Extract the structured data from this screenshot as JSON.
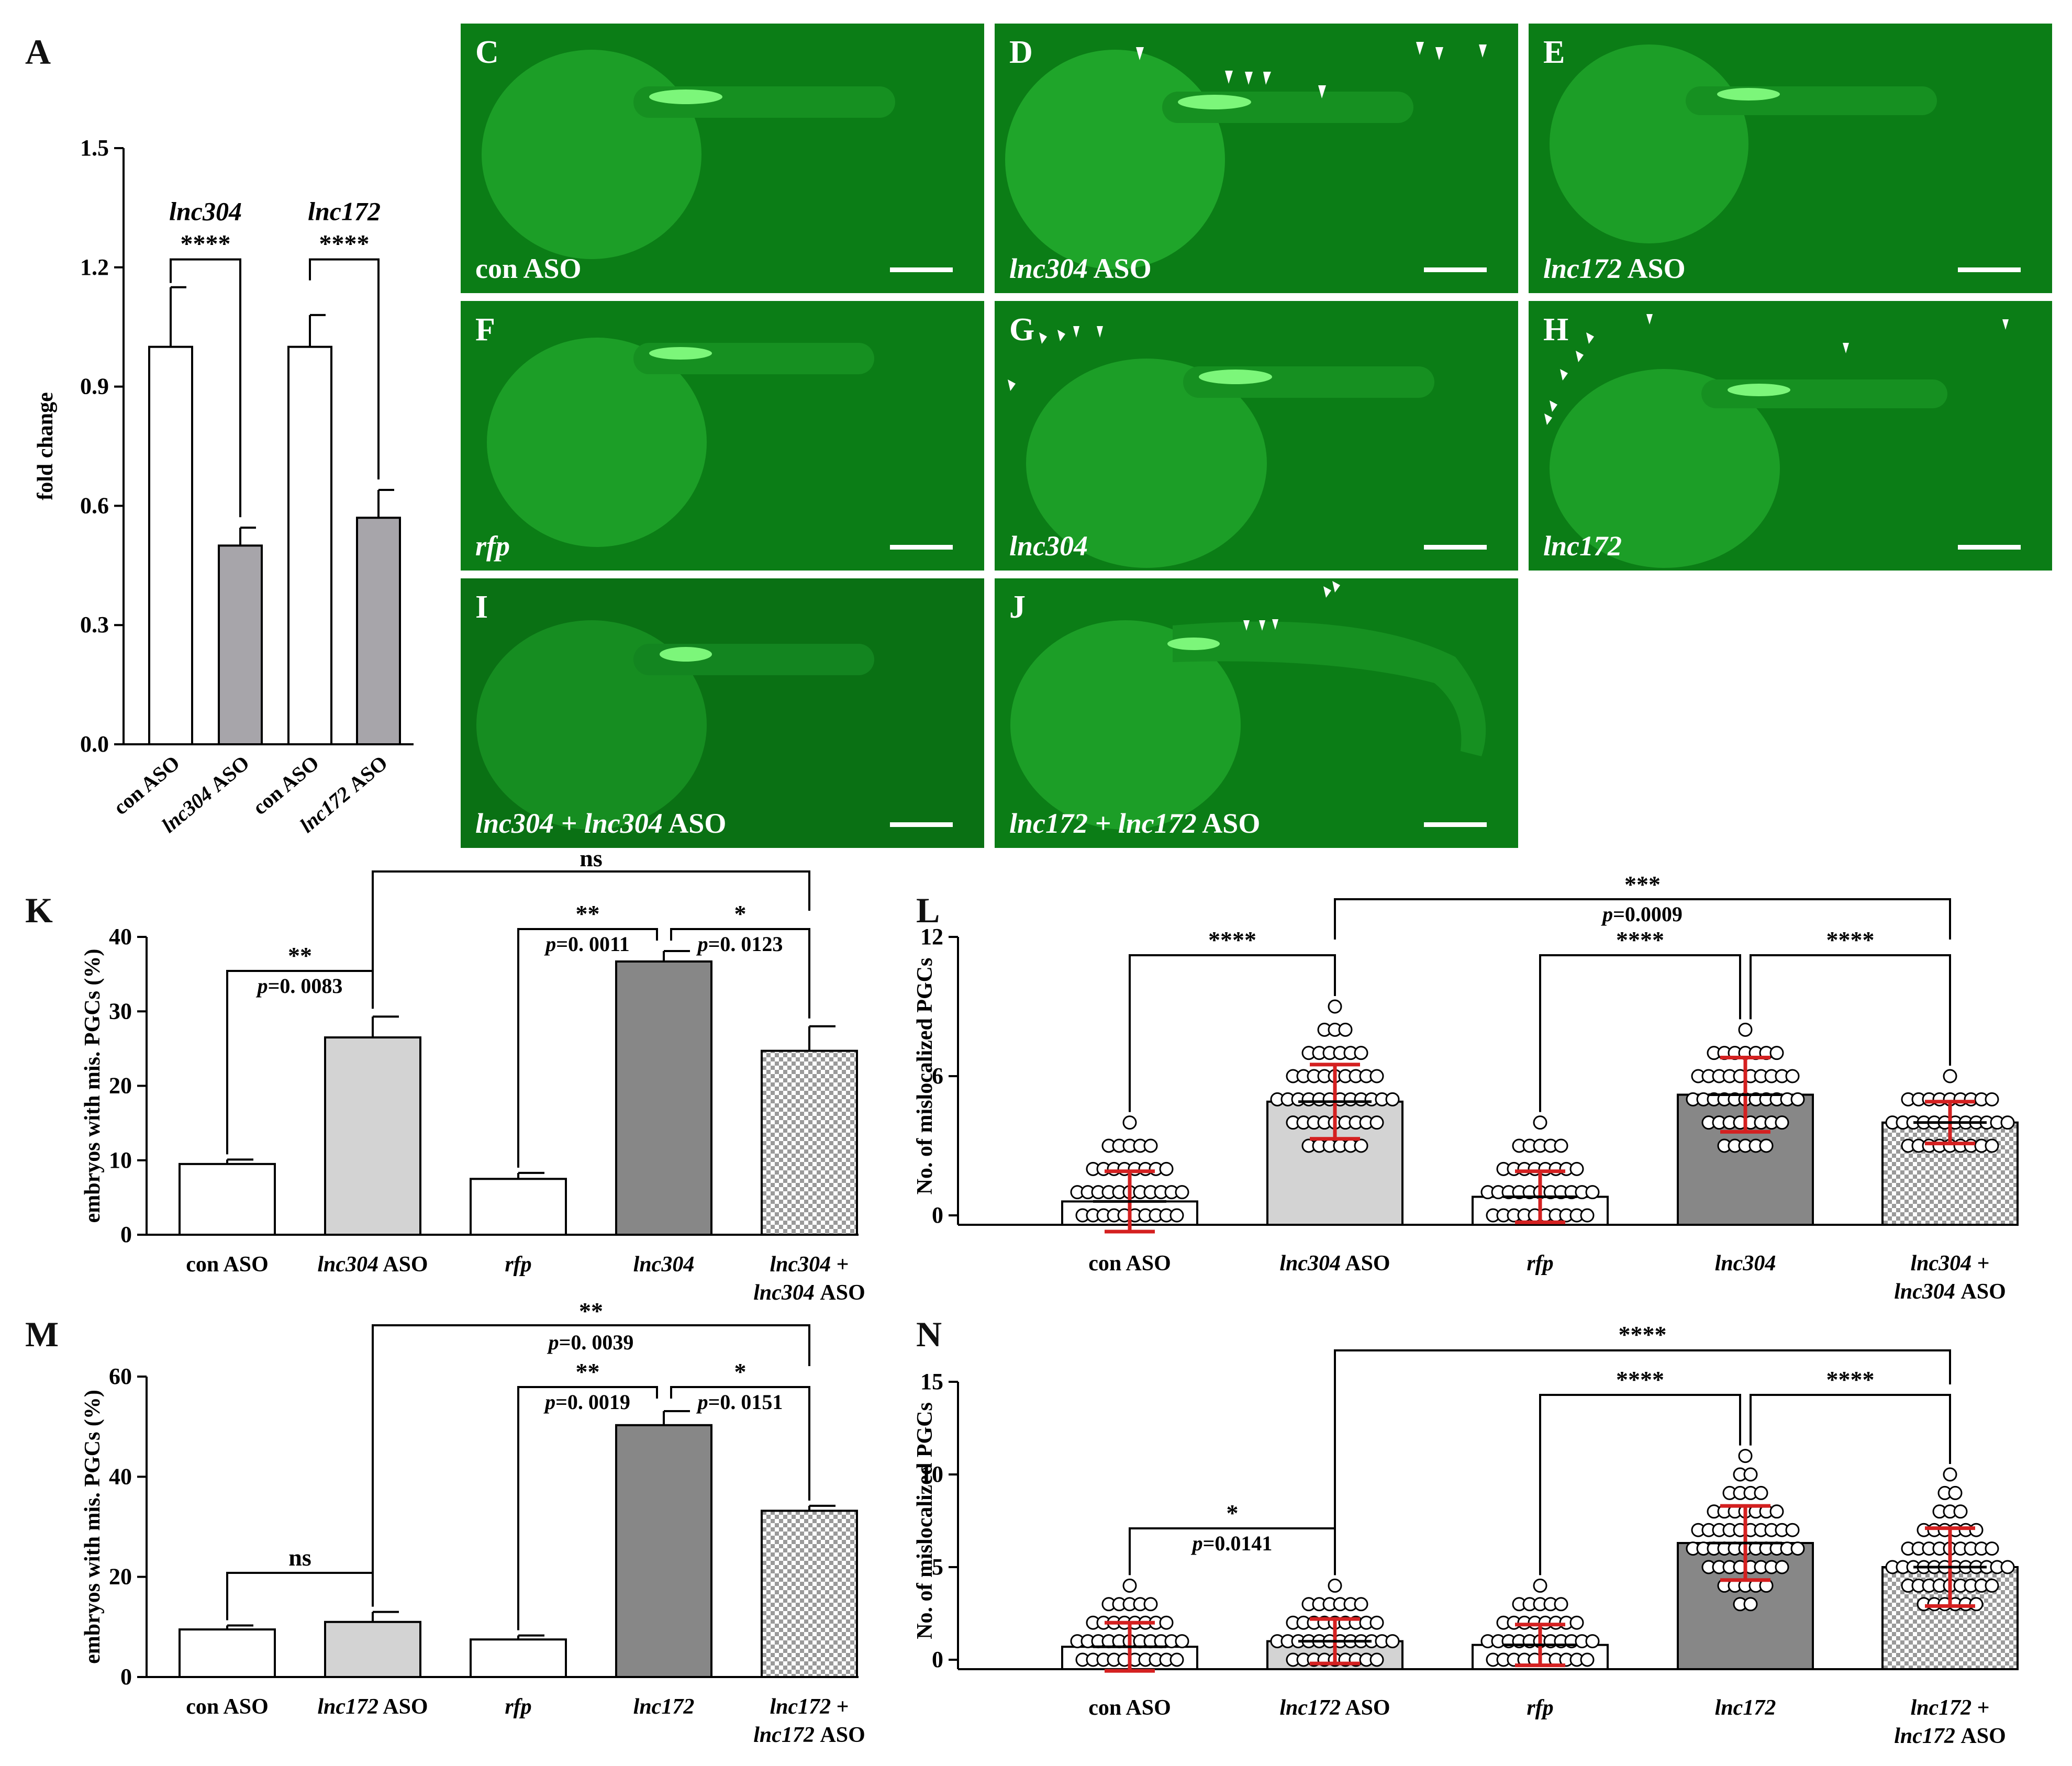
{
  "panel_letters": {
    "A": "A",
    "K": "K",
    "L": "L",
    "M": "M",
    "N": "N"
  },
  "photos": [
    {
      "letter": "C",
      "caption_it": "",
      "caption_rm": "con ASO",
      "arrows": false
    },
    {
      "letter": "D",
      "caption_it": "lnc304",
      "caption_rm": " ASO",
      "arrows": true
    },
    {
      "letter": "E",
      "caption_it": "lnc172",
      "caption_rm": " ASO",
      "arrows": false
    },
    {
      "letter": "F",
      "caption_it": "rfp",
      "caption_rm": "",
      "arrows": false
    },
    {
      "letter": "G",
      "caption_it": "lnc304",
      "caption_rm": "",
      "arrows": true
    },
    {
      "letter": "H",
      "caption_it": "lnc172",
      "caption_rm": "",
      "arrows": true
    },
    {
      "letter": "I",
      "caption_it": "lnc304 + lnc304",
      "caption_rm": " ASO",
      "arrows": false
    },
    {
      "letter": "J",
      "caption_it": "lnc172 + lnc172",
      "caption_rm": " ASO",
      "arrows": true
    }
  ],
  "colors": {
    "white_bar": "#ffffff",
    "light_gray": "#d3d3d3",
    "gray_A": "#a7a5aa",
    "dark_gray": "#878787",
    "error_red": "#d42020",
    "photo_green": "#0b7d16",
    "marker": "#ffffff"
  },
  "chart_data": [
    {
      "id": "A",
      "type": "bar",
      "ylabel": "fold change",
      "ylim": [
        0,
        1.5
      ],
      "yticks": [
        "0.0",
        "0.3",
        "0.6",
        "0.9",
        "1.2",
        "1.5"
      ],
      "categories": [
        "con ASO",
        "lnc304 ASO",
        "con ASO",
        "lnc172 ASO"
      ],
      "values": [
        1.0,
        0.5,
        1.0,
        0.57
      ],
      "errors": [
        0.15,
        0.045,
        0.08,
        0.07
      ],
      "gene_labels": [
        "lnc304",
        "lnc172"
      ],
      "significance": [
        {
          "from": 0,
          "to": 1,
          "label": "****"
        },
        {
          "from": 2,
          "to": 3,
          "label": "****"
        }
      ]
    },
    {
      "id": "K",
      "type": "bar",
      "ylabel": "embryos with mis. PGCs (%)",
      "ylim": [
        0,
        40
      ],
      "yticks": [
        "0",
        "10",
        "20",
        "30",
        "40"
      ],
      "categories": [
        "con ASO",
        "lnc304 ASO",
        "rfp",
        "lnc304",
        "lnc304 + lnc304 ASO"
      ],
      "values": [
        9.5,
        26.5,
        7.5,
        36.7,
        24.7
      ],
      "errors": [
        0.6,
        2.8,
        0.8,
        1.4,
        3.3
      ],
      "significance": [
        {
          "from": 0,
          "to": 1,
          "label": "**",
          "p": "p=0. 0083"
        },
        {
          "from": 2,
          "to": 3,
          "label": "**",
          "p": "p=0. 0011"
        },
        {
          "from": 3,
          "to": 4,
          "label": "*",
          "p": "p=0. 0123"
        },
        {
          "from": 1,
          "to": 4,
          "label": "ns",
          "p": ""
        }
      ]
    },
    {
      "id": "L",
      "type": "scatter-bar",
      "ylabel": "No. of mislocalized PGCs",
      "ylim": [
        0,
        12
      ],
      "yticks": [
        "0",
        "6",
        "12"
      ],
      "categories": [
        "con ASO",
        "lnc304 ASO",
        "rfp",
        "lnc304",
        "lnc304 + lnc304 ASO"
      ],
      "values": [
        0.6,
        4.9,
        0.8,
        5.2,
        4.0
      ],
      "sd": [
        1.3,
        1.6,
        1.1,
        1.6,
        0.9
      ],
      "point_range": [
        [
          0,
          4
        ],
        [
          3,
          9
        ],
        [
          0,
          4
        ],
        [
          3,
          8
        ],
        [
          3,
          6
        ]
      ],
      "significance": [
        {
          "from": 0,
          "to": 1,
          "label": "****",
          "p": ""
        },
        {
          "from": 2,
          "to": 3,
          "label": "****",
          "p": ""
        },
        {
          "from": 3,
          "to": 4,
          "label": "****",
          "p": ""
        },
        {
          "from": 1,
          "to": 4,
          "label": "***",
          "p": "p=0.0009"
        }
      ]
    },
    {
      "id": "M",
      "type": "bar",
      "ylabel": "embryos with mis. PGCs (%)",
      "ylim": [
        0,
        60
      ],
      "yticks": [
        "0",
        "20",
        "40",
        "60"
      ],
      "categories": [
        "con ASO",
        "lnc172 ASO",
        "rfp",
        "lnc172",
        "lnc172 + lnc172 ASO"
      ],
      "values": [
        9.5,
        11.0,
        7.5,
        50.3,
        33.2
      ],
      "errors": [
        0.8,
        2.0,
        0.8,
        2.8,
        1.0
      ],
      "significance": [
        {
          "from": 0,
          "to": 1,
          "label": "ns",
          "p": ""
        },
        {
          "from": 2,
          "to": 3,
          "label": "**",
          "p": "p=0. 0019"
        },
        {
          "from": 3,
          "to": 4,
          "label": "*",
          "p": "p=0. 0151"
        },
        {
          "from": 1,
          "to": 4,
          "label": "**",
          "p": "p=0. 0039"
        }
      ]
    },
    {
      "id": "N",
      "type": "scatter-bar",
      "ylabel": "No. of mislocalized PGCs",
      "ylim": [
        0,
        15
      ],
      "yticks": [
        "0",
        "5",
        "10",
        "15"
      ],
      "categories": [
        "con ASO",
        "lnc172 ASO",
        "rfp",
        "lnc172",
        "lnc172 + lnc172 ASO"
      ],
      "values": [
        0.7,
        1.0,
        0.8,
        6.3,
        5.0
      ],
      "sd": [
        1.3,
        1.2,
        1.1,
        2.0,
        2.1
      ],
      "point_range": [
        [
          0,
          4
        ],
        [
          0,
          4
        ],
        [
          0,
          4
        ],
        [
          3,
          11
        ],
        [
          3,
          10
        ]
      ],
      "significance": [
        {
          "from": 0,
          "to": 1,
          "label": "*",
          "p": "p=0.0141"
        },
        {
          "from": 2,
          "to": 3,
          "label": "****",
          "p": ""
        },
        {
          "from": 3,
          "to": 4,
          "label": "****",
          "p": ""
        },
        {
          "from": 1,
          "to": 4,
          "label": "****",
          "p": ""
        }
      ]
    }
  ]
}
